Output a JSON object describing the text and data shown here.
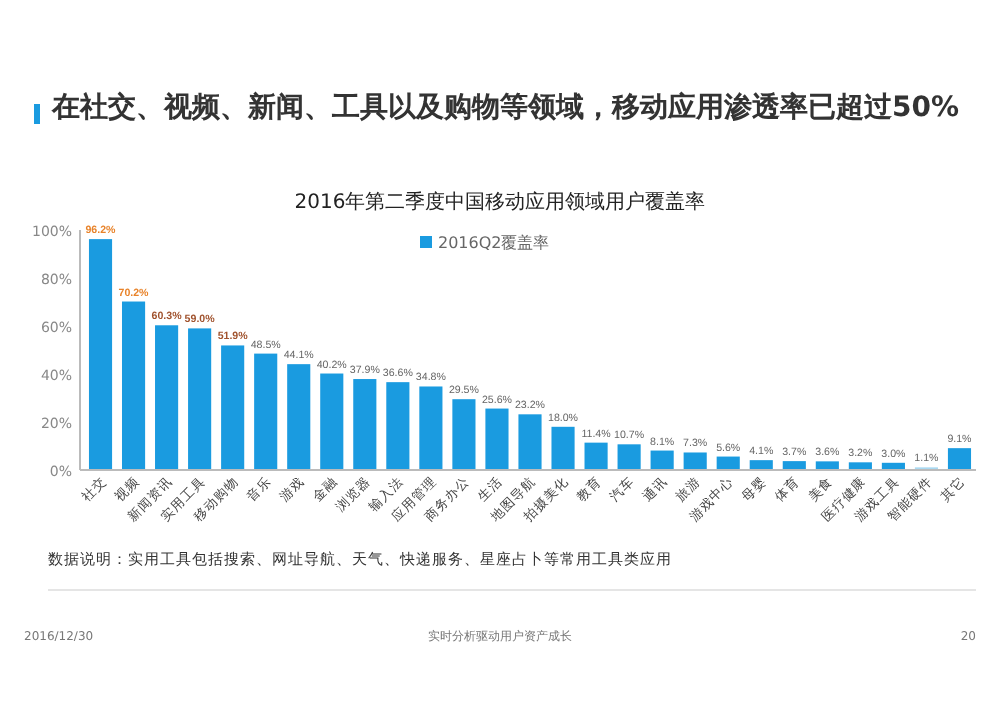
{
  "chart_data": {
    "type": "bar",
    "title": "在社交、视频、新闻、工具以及购物等领域，移动应用渗透率已超过50%",
    "subtitle": "2016年第二季度中国移动应用领域用户覆盖率",
    "categories": [
      "社交",
      "视频",
      "新闻资讯",
      "实用工具",
      "移动购物",
      "音乐",
      "游戏",
      "金融",
      "浏览器",
      "输入法",
      "应用管理",
      "商务办公",
      "生活",
      "地图导航",
      "拍摄美化",
      "教育",
      "汽车",
      "通讯",
      "旅游",
      "游戏中心",
      "母婴",
      "体育",
      "美食",
      "医疗健康",
      "游戏工具",
      "智能硬件",
      "其它"
    ],
    "series": [
      {
        "name": "2016Q2覆盖率",
        "color": "#1a9be0",
        "colors": [
          "#1a9be0",
          "#1a9be0",
          "#1a9be0",
          "#1a9be0",
          "#1a9be0",
          "#1a9be0",
          "#1a9be0",
          "#1a9be0",
          "#1a9be0",
          "#1a9be0",
          "#1a9be0",
          "#1a9be0",
          "#1a9be0",
          "#1a9be0",
          "#1a9be0",
          "#1a9be0",
          "#1a9be0",
          "#1a9be0",
          "#1a9be0",
          "#1a9be0",
          "#1a9be0",
          "#1a9be0",
          "#1a9be0",
          "#1a9be0",
          "#1a9be0",
          "#a9d9f2",
          "#1a9be0"
        ],
        "values": [
          96.2,
          70.2,
          60.3,
          59.0,
          51.9,
          48.5,
          44.1,
          40.2,
          37.9,
          36.6,
          34.8,
          29.5,
          25.6,
          23.2,
          18.0,
          11.4,
          10.7,
          8.1,
          7.3,
          5.6,
          4.1,
          3.7,
          3.6,
          3.2,
          3.0,
          1.1,
          9.1
        ],
        "value_labels": [
          "96.2%",
          "70.2%",
          "60.3%",
          "59.0%",
          "51.9%",
          "48.5%",
          "44.1%",
          "40.2%",
          "37.9%",
          "36.6%",
          "34.8%",
          "29.5%",
          "25.6%",
          "23.2%",
          "18.0%",
          "11.4%",
          "10.7%",
          "8.1%",
          "7.3%",
          "5.6%",
          "4.1%",
          "3.7%",
          "3.6%",
          "3.2%",
          "3.0%",
          "1.1%",
          "9.1%"
        ]
      }
    ],
    "ylim": [
      0,
      100
    ],
    "yticks": [
      {
        "value": 0,
        "label": "0%"
      },
      {
        "value": 20,
        "label": "20%"
      },
      {
        "value": 40,
        "label": "40%"
      },
      {
        "value": 60,
        "label": "60%"
      },
      {
        "value": 80,
        "label": "80%"
      },
      {
        "value": 100,
        "label": "100%"
      }
    ],
    "legend": "top",
    "grid": false,
    "annotations": [
      "数据说明：实用工具包括搜索、网址导航、天气、快递服务、星座占卜等常用工具类应用",
      "2016/12/30",
      "实时分析驱动用户资产成长",
      "20"
    ]
  }
}
